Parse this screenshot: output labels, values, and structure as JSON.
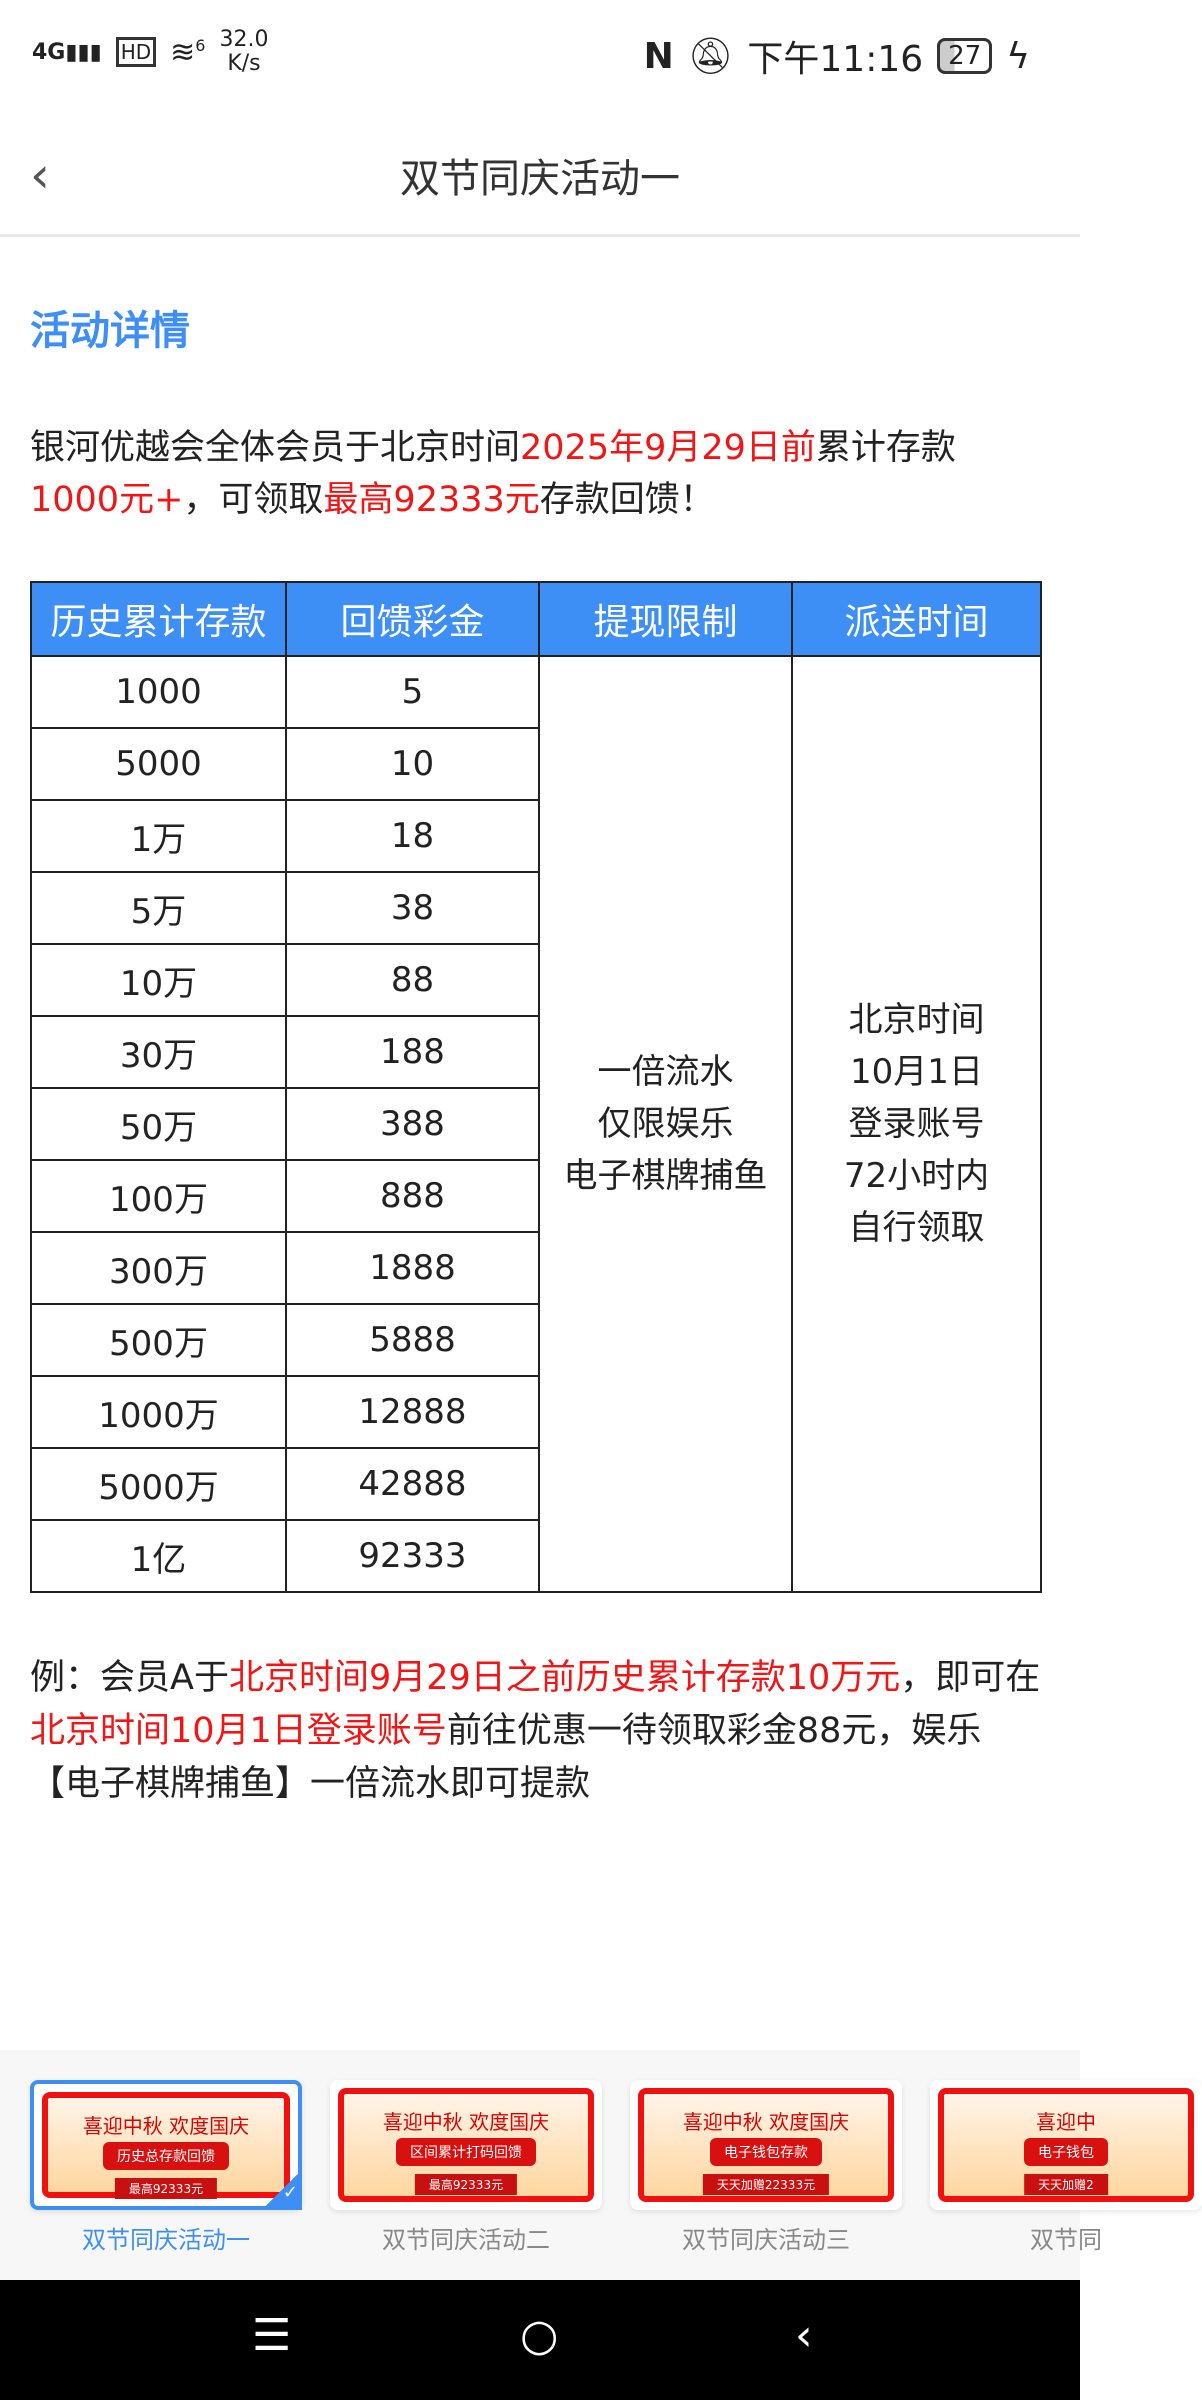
{
  "status": {
    "network": "4G",
    "hd": "HD",
    "wifi": "6",
    "speed_value": "32.0",
    "speed_unit": "K/s",
    "time": "下午11:16",
    "battery": "27"
  },
  "header": {
    "title": "双节同庆活动一"
  },
  "section_title": "活动详情",
  "intro": {
    "p1": "银河优越会全体会员于北京时间",
    "p1_red": "2025年9月29日前",
    "p2": "累计存款",
    "p3_red": "1000元+",
    "p4": "，可领取",
    "p5_red": "最高92333元",
    "p6": "存款回馈！"
  },
  "table": {
    "headers": [
      "历史累计存款",
      "回馈彩金",
      "提现限制",
      "派送时间"
    ],
    "rows": [
      [
        "1000",
        "5"
      ],
      [
        "5000",
        "10"
      ],
      [
        "1万",
        "18"
      ],
      [
        "5万",
        "38"
      ],
      [
        "10万",
        "88"
      ],
      [
        "30万",
        "188"
      ],
      [
        "50万",
        "388"
      ],
      [
        "100万",
        "888"
      ],
      [
        "300万",
        "1888"
      ],
      [
        "500万",
        "5888"
      ],
      [
        "1000万",
        "12888"
      ],
      [
        "5000万",
        "42888"
      ],
      [
        "1亿",
        "92333"
      ]
    ],
    "limit": [
      "一倍流水",
      "仅限娱乐",
      "电子棋牌捕鱼"
    ],
    "delivery": [
      "北京时间",
      "10月1日",
      "登录账号",
      "72小时内",
      "自行领取"
    ]
  },
  "example": {
    "a": "例：会员A于",
    "b_red": "北京时间9月29日之前历史累计存款10万元",
    "c": "，即可在",
    "d_red": "北京时间10月1日登录账号",
    "e": "前往优惠一待领取彩金88元，娱乐【电子棋牌捕鱼】一倍流水即可提款"
  },
  "tabs": [
    {
      "label": "双节同庆活动一",
      "banner_title": "喜迎中秋 欢度国庆",
      "banner_caption": "历史总存款回馈",
      "banner_sub": "最高92333元"
    },
    {
      "label": "双节同庆活动二",
      "banner_title": "喜迎中秋 欢度国庆",
      "banner_caption": "区间累计打码回馈",
      "banner_sub": "最高92333元"
    },
    {
      "label": "双节同庆活动三",
      "banner_title": "喜迎中秋 欢度国庆",
      "banner_caption": "电子钱包存款",
      "banner_sub": "天天加赠22333元"
    },
    {
      "label": "双节同",
      "banner_title": "喜迎中",
      "banner_caption": "电子钱包",
      "banner_sub": "天天加赠2"
    }
  ],
  "colors": {
    "accent": "#3d8ff5",
    "highlight": "#f21515"
  }
}
